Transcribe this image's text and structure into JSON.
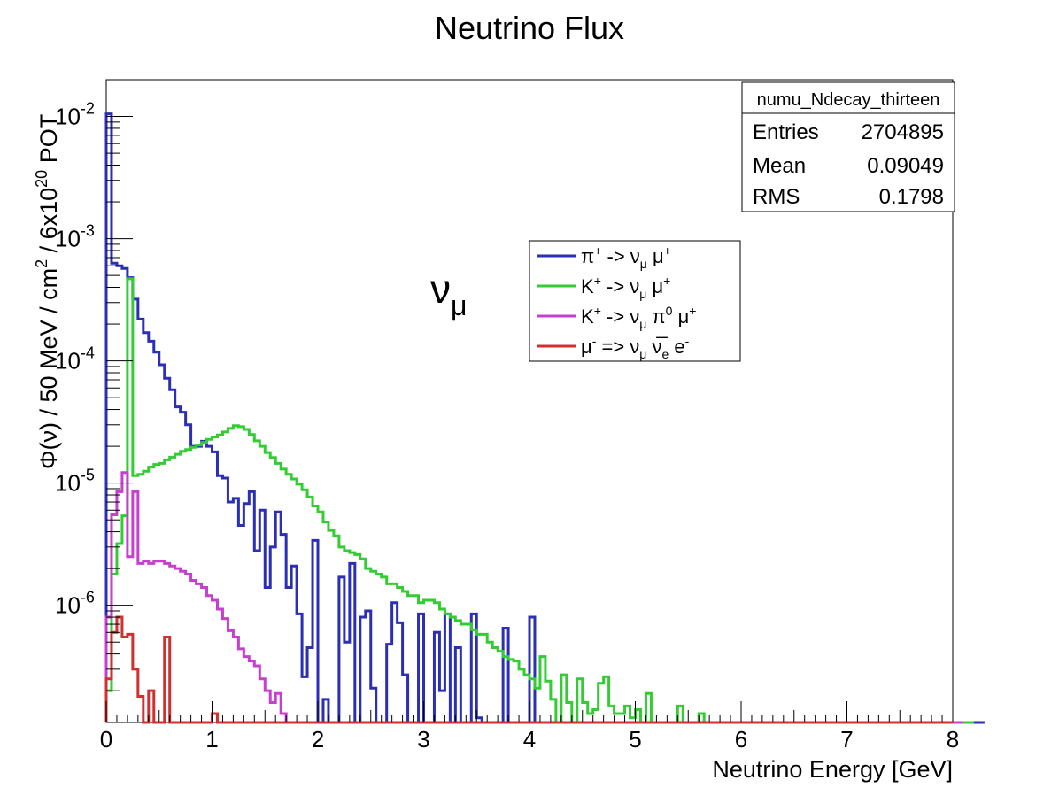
{
  "chart_data": {
    "type": "line",
    "title": "Neutrino Flux",
    "xlabel": "Neutrino Energy [GeV]",
    "ylabel_parts": [
      "Φ(ν) / 50 MeV / cm",
      "2",
      " / 6x10",
      "20",
      " POT"
    ],
    "annotation": {
      "symbol": "ν",
      "sub": "μ"
    },
    "xlim": [
      0,
      8
    ],
    "ylim": [
      1.1e-07,
      0.02
    ],
    "yscale": "log",
    "bin_width": 0.05,
    "grid": false,
    "x_ticks": [
      "0",
      "1",
      "2",
      "3",
      "4",
      "5",
      "6",
      "7",
      "8"
    ],
    "y_ticks": [
      {
        "base": "10",
        "exp": "-6",
        "value": 1e-06
      },
      {
        "base": "10",
        "exp": "-5",
        "value": 1e-05
      },
      {
        "base": "10",
        "exp": "-4",
        "value": 0.0001
      },
      {
        "base": "10",
        "exp": "-3",
        "value": 0.001
      },
      {
        "base": "10",
        "exp": "-2",
        "value": 0.01
      }
    ],
    "stats_box": {
      "name": "numu_Ndecay_thirteen",
      "rows": [
        {
          "label": "Entries",
          "value": "2704895"
        },
        {
          "label": "Mean",
          "value": "0.09049"
        },
        {
          "label": "RMS",
          "value": "0.1798"
        }
      ]
    },
    "legend": {
      "position": "upper-center",
      "entries": [
        {
          "key": "pi",
          "color": "#2b2fb5",
          "parts": [
            [
              "t",
              "π"
            ],
            [
              "sup",
              "+"
            ],
            [
              "t",
              " -> ν"
            ],
            [
              "sub",
              "μ"
            ],
            [
              "t",
              " μ"
            ],
            [
              "sup",
              "+"
            ]
          ]
        },
        {
          "key": "k2",
          "color": "#33cc33",
          "parts": [
            [
              "t",
              "K"
            ],
            [
              "sup",
              "+"
            ],
            [
              "t",
              " -> ν"
            ],
            [
              "sub",
              "μ"
            ],
            [
              "t",
              " μ"
            ],
            [
              "sup",
              "+"
            ]
          ]
        },
        {
          "key": "k3",
          "color": "#c63fce",
          "parts": [
            [
              "t",
              "K"
            ],
            [
              "sup",
              "+"
            ],
            [
              "t",
              " -> ν"
            ],
            [
              "sub",
              "μ"
            ],
            [
              "t",
              " π"
            ],
            [
              "sup",
              "0"
            ],
            [
              "t",
              " μ"
            ],
            [
              "sup",
              "+"
            ]
          ]
        },
        {
          "key": "mu",
          "color": "#d03030",
          "parts": [
            [
              "t",
              "μ"
            ],
            [
              "sup",
              "-"
            ],
            [
              "t",
              " => ν"
            ],
            [
              "sub",
              "μ"
            ],
            [
              "t",
              " ν̅"
            ],
            [
              "sub",
              "e"
            ],
            [
              "t",
              " e"
            ],
            [
              "sup",
              "-"
            ]
          ]
        }
      ]
    },
    "series": [
      {
        "name": "π+ -> νμ μ+",
        "color": "#2b2fb5",
        "x0": 0,
        "values": [
          0.0105,
          0.00063,
          0.0006,
          0.00057,
          0.00048,
          0.00032,
          0.00022,
          0.00017,
          0.000145,
          0.000118,
          9.3e-05,
          7.2e-05,
          5.8e-05,
          4.2e-05,
          3.8e-05,
          3e-05,
          2e-05,
          2e-05,
          2.2e-05,
          2e-05,
          1.8e-05,
          1.15e-05,
          1.1e-05,
          7e-06,
          7.5e-06,
          4.5e-06,
          6.8e-06,
          8.5e-06,
          2.8e-06,
          6e-06,
          1.4e-06,
          3e-06,
          5.8e-06,
          3.8e-06,
          1.4e-06,
          2.1e-06,
          8.5e-07,
          2.6e-07,
          4.5e-07,
          3.4e-06,
          0.0,
          1.7e-07,
          0.0,
          0.0,
          1.7e-06,
          5e-07,
          2.2e-06,
          0.0,
          8e-07,
          9e-07,
          2.1e-07,
          0.0,
          0.0,
          4.8e-07,
          1.05e-06,
          7.2e-07,
          2.7e-07,
          0.0,
          0.0,
          8.5e-07,
          0.0,
          0.0,
          6e-07,
          2e-07,
          8.5e-07,
          0.0,
          4.5e-07,
          0.0,
          0.0,
          8.5e-07,
          1.2e-07,
          0.0,
          0.0,
          0.0,
          0.0,
          6.5e-07,
          0.0,
          0.0,
          0.0,
          0.0,
          8e-07,
          0.0,
          0.0,
          0.0,
          0.0,
          0.0,
          0.0,
          0.0,
          0.0,
          0.0,
          0.0,
          0.0,
          0.0,
          0.0,
          0.0,
          0.0,
          0.0,
          0.0,
          0.0,
          0.0,
          0.0,
          0.0,
          0.0,
          0.0,
          0.0,
          0.0,
          0.0,
          0.0,
          0.0,
          0.0,
          0.0,
          0.0,
          0.0,
          0.0,
          0.0,
          0.0,
          0.0,
          0.0,
          0.0,
          0.0,
          0.0,
          0.0,
          0.0,
          0.0,
          0.0,
          0.0,
          0.0,
          0.0,
          0.0,
          0.0,
          0.0,
          0.0,
          0.0,
          0.0,
          0.0,
          0.0,
          0.0,
          0.0,
          0.0,
          0.0,
          0.0,
          0.0,
          0.0,
          0.0,
          0.0,
          0.0,
          0.0,
          0.0,
          0.0,
          0.0,
          0.0,
          0.0,
          0.0,
          0.0,
          0.0,
          0.0,
          0.0,
          0.0,
          0.0,
          0.0,
          0.0,
          0.0,
          0.0,
          0.0,
          0.0,
          0.0
        ]
      },
      {
        "name": "K+ -> νμ μ+",
        "color": "#33cc33",
        "x0": 0,
        "values": [
          2e-07,
          1.8e-06,
          3.2e-06,
          5.4e-06,
          0.00047,
          1.15e-05,
          1.18e-05,
          1.25e-05,
          1.35e-05,
          1.42e-05,
          1.45e-05,
          1.55e-05,
          1.63e-05,
          1.72e-05,
          1.82e-05,
          1.88e-05,
          1.96e-05,
          2.05e-05,
          2.15e-05,
          2.28e-05,
          2.38e-05,
          2.48e-05,
          2.62e-05,
          2.8e-05,
          2.95e-05,
          2.9e-05,
          2.75e-05,
          2.5e-05,
          2.22e-05,
          2e-05,
          1.78e-05,
          1.62e-05,
          1.45e-05,
          1.3e-05,
          1.18e-05,
          1.08e-05,
          9.8e-06,
          8.8e-06,
          7.7e-06,
          6.5e-06,
          5.8e-06,
          4.8e-06,
          4.1e-06,
          3.7e-06,
          3e-06,
          2.8e-06,
          2.7e-06,
          2.6e-06,
          2.4e-06,
          2e-06,
          1.9e-06,
          1.8e-06,
          1.7e-06,
          1.5e-06,
          1.5e-06,
          1.4e-06,
          1.3e-06,
          1.2e-06,
          1.2e-06,
          1.05e-06,
          1.1e-06,
          1.1e-06,
          1.05e-06,
          9.3e-07,
          8.5e-07,
          8e-07,
          7.5e-07,
          7e-07,
          7e-07,
          6.3e-07,
          5.8e-07,
          5.8e-07,
          5e-07,
          4.5e-07,
          4.2e-07,
          3.8e-07,
          3.6e-07,
          3.5e-07,
          3e-07,
          2.7e-07,
          2.5e-07,
          2.1e-07,
          3.8e-07,
          2.4e-07,
          1.7e-07,
          1e-07,
          2.7e-07,
          1.6e-07,
          1e-07,
          2.5e-07,
          1.6e-07,
          1.3e-07,
          1.4e-07,
          2.3e-07,
          2.6e-07,
          1.5e-07,
          1.3e-07,
          1.3e-07,
          1.5e-07,
          1.2e-07,
          1.4e-07,
          0.0,
          1.9e-07,
          1.1e-07,
          0.0,
          0.0,
          0.0,
          0.0,
          1.5e-07,
          0.0,
          0.0,
          0.0,
          1.3e-07,
          0.0,
          0.0,
          0.0,
          0.0,
          0.0,
          0.0,
          0.0,
          0.0,
          0.0,
          0.0,
          0.0,
          0.0,
          0.0,
          0.0,
          0.0,
          0.0,
          0.0,
          0.0,
          0.0,
          0.0,
          0.0,
          0.0,
          0.0,
          0.0,
          0.0,
          0.0,
          0.0,
          0.0,
          0.0,
          0.0,
          0.0,
          0.0,
          0.0,
          0.0,
          0.0,
          0.0,
          0.0,
          0.0,
          0.0,
          0.0,
          0.0,
          0.0,
          0.0,
          0.0,
          0.0,
          0.0,
          0.0,
          0.0,
          0.0,
          0.0,
          0.0
        ]
      },
      {
        "name": "K+ -> νμ π0 μ+",
        "color": "#c63fce",
        "x0": 0,
        "values": [
          8e-07,
          5.5e-06,
          8.5e-06,
          1.22e-05,
          2.5e-06,
          8.5e-06,
          2.2e-06,
          2.3e-06,
          2.2e-06,
          2.3e-06,
          2.3e-06,
          2.2e-06,
          2.1e-06,
          2e-06,
          1.9e-06,
          1.8e-06,
          1.6e-06,
          1.5e-06,
          1.4e-06,
          1.2e-06,
          1.1e-06,
          9.3e-07,
          7.8e-07,
          6.2e-07,
          5.5e-07,
          4.4e-07,
          3.8e-07,
          3.5e-07,
          3.2e-07,
          2.5e-07,
          2e-07,
          1.6e-07,
          1.9e-07,
          1.3e-07,
          0.0,
          0.0,
          0.0,
          0.0,
          0.0,
          0.0,
          0.0,
          0.0,
          0.0,
          0.0,
          0.0,
          0.0,
          0.0,
          0.0,
          0.0,
          0.0,
          0.0,
          0.0,
          0.0,
          0.0,
          0.0,
          0.0,
          0.0,
          0.0,
          0.0,
          0.0,
          0.0,
          0.0,
          0.0,
          0.0,
          0.0,
          0.0,
          0.0,
          0.0,
          0.0,
          0.0,
          0.0,
          0.0,
          0.0,
          0.0,
          0.0,
          0.0,
          0.0,
          0.0,
          0.0,
          0.0,
          0.0,
          0.0,
          0.0,
          0.0,
          0.0,
          0.0,
          0.0,
          0.0,
          0.0,
          0.0,
          0.0,
          0.0,
          0.0,
          0.0,
          0.0,
          0.0,
          0.0,
          0.0,
          0.0,
          0.0,
          0.0,
          0.0,
          0.0,
          0.0,
          0.0,
          0.0,
          0.0,
          0.0,
          0.0,
          0.0,
          0.0,
          0.0,
          0.0,
          0.0,
          0.0,
          0.0,
          0.0,
          0.0,
          0.0,
          0.0,
          0.0,
          0.0,
          0.0,
          0.0,
          0.0,
          0.0,
          0.0,
          0.0,
          0.0,
          0.0,
          0.0,
          0.0,
          0.0,
          0.0,
          0.0,
          0.0,
          0.0,
          0.0,
          0.0,
          0.0,
          0.0,
          0.0,
          0.0,
          0.0,
          0.0,
          0.0,
          0.0,
          0.0,
          0.0,
          0.0,
          0.0,
          0.0,
          0.0,
          0.0,
          0.0,
          0.0,
          0.0,
          0.0,
          0.0,
          0.0,
          0.0,
          0.0
        ]
      },
      {
        "name": "μ- => νμ ν̅e e-",
        "color": "#d03030",
        "x0": 0,
        "values": [
          2.5e-07,
          6e-07,
          8e-07,
          5.5e-07,
          5.8e-07,
          3e-07,
          1.8e-07,
          0.0,
          2e-07,
          0.0,
          0.0,
          5.5e-07,
          0.0,
          0.0,
          0.0,
          0.0,
          0.0,
          0.0,
          0.0,
          0.0,
          1.3e-07,
          0.0,
          0.0,
          0.0,
          0.0,
          0.0,
          0.0,
          0.0,
          0.0,
          0.0,
          0.0,
          0.0,
          0.0,
          0.0,
          0.0,
          0.0,
          0.0,
          0.0,
          0.0,
          0.0,
          0.0,
          0.0,
          0.0,
          0.0,
          0.0,
          0.0,
          0.0,
          0.0,
          0.0,
          0.0,
          0.0,
          0.0,
          0.0,
          0.0,
          0.0,
          0.0,
          0.0,
          0.0,
          0.0,
          0.0,
          0.0,
          0.0,
          0.0,
          0.0,
          0.0,
          0.0,
          0.0,
          0.0,
          0.0,
          0.0,
          0.0,
          0.0,
          0.0,
          0.0,
          0.0,
          0.0,
          0.0,
          0.0,
          0.0,
          0.0,
          0.0,
          0.0,
          0.0,
          0.0,
          0.0,
          0.0,
          0.0,
          0.0,
          0.0,
          0.0,
          0.0,
          0.0,
          0.0,
          0.0,
          0.0,
          0.0,
          0.0,
          0.0,
          0.0,
          0.0,
          0.0,
          0.0,
          0.0,
          0.0,
          0.0,
          0.0,
          0.0,
          0.0,
          0.0,
          0.0,
          0.0,
          0.0,
          0.0,
          0.0,
          0.0,
          0.0,
          0.0,
          0.0,
          0.0,
          0.0,
          0.0,
          0.0,
          0.0,
          0.0,
          0.0,
          0.0,
          0.0,
          0.0,
          0.0,
          0.0,
          0.0,
          0.0,
          0.0,
          0.0,
          0.0,
          0.0,
          0.0,
          0.0,
          0.0,
          0.0,
          0.0,
          0.0,
          0.0,
          0.0,
          0.0,
          0.0,
          0.0,
          0.0,
          0.0,
          0.0,
          0.0,
          0.0,
          0.0,
          0.0,
          0.0,
          0.0,
          0.0,
          0.0,
          0.0,
          0.0
        ]
      }
    ]
  }
}
